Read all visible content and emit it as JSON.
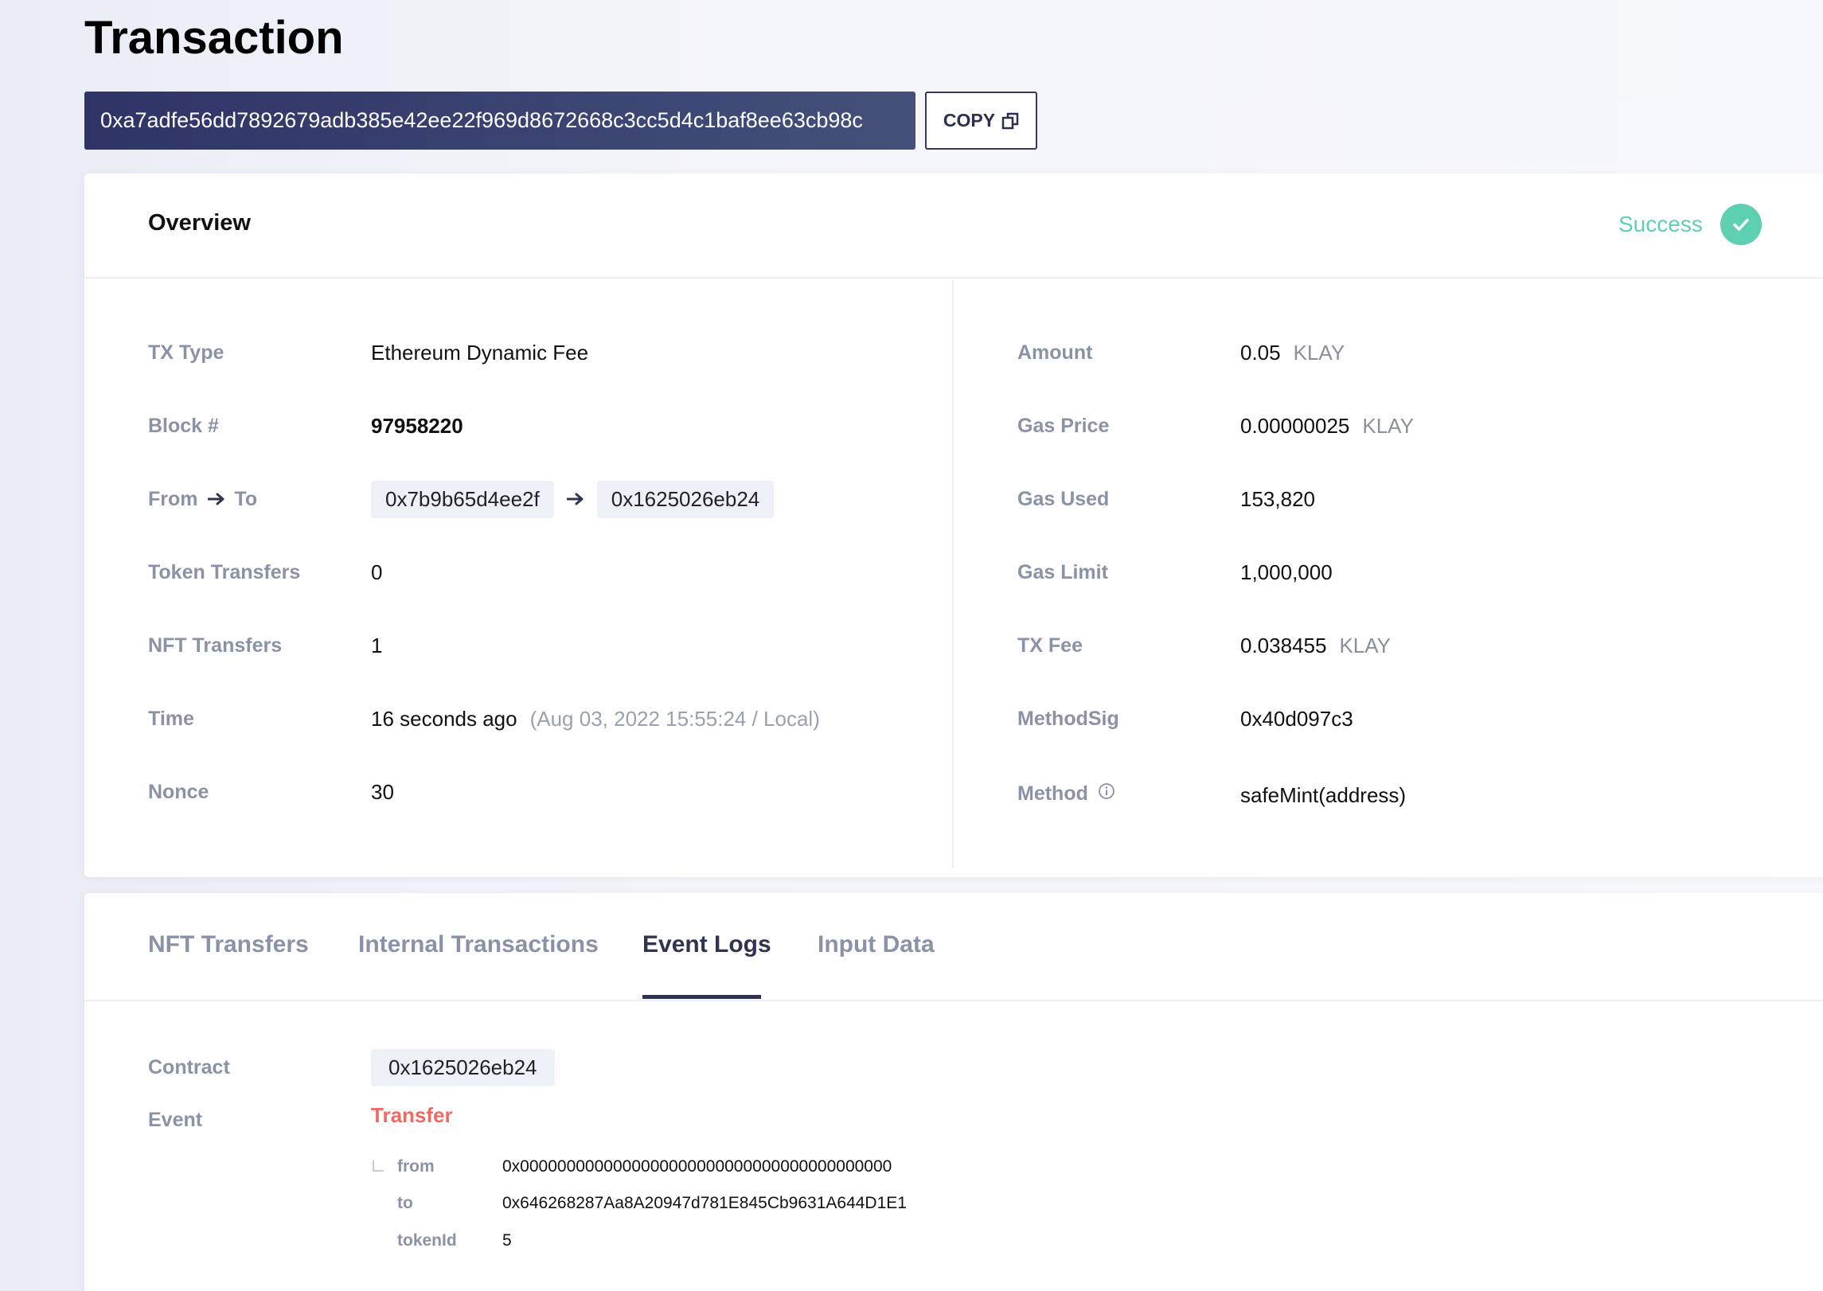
{
  "page": {
    "title": "Transaction",
    "tx_hash": "0xa7adfe56dd7892679adb385e42ee22f969d8672668c3cc5d4c1baf8ee63cb98c",
    "copy_label": "COPY"
  },
  "overview": {
    "title": "Overview",
    "status": "Success",
    "left": {
      "tx_type_label": "TX Type",
      "tx_type": "Ethereum Dynamic Fee",
      "block_label": "Block #",
      "block": "97958220",
      "from_label": "From",
      "to_label": "To",
      "from": "0x7b9b65d4ee2f",
      "to": "0x1625026eb24",
      "token_transfers_label": "Token Transfers",
      "token_transfers": "0",
      "nft_transfers_label": "NFT Transfers",
      "nft_transfers": "1",
      "time_label": "Time",
      "time_relative": "16 seconds ago",
      "time_absolute": "(Aug 03, 2022 15:55:24 / Local)",
      "nonce_label": "Nonce",
      "nonce": "30"
    },
    "right": {
      "amount_label": "Amount",
      "amount": "0.05",
      "amount_unit": "KLAY",
      "gas_price_label": "Gas Price",
      "gas_price": "0.00000025",
      "gas_price_unit": "KLAY",
      "gas_used_label": "Gas Used",
      "gas_used": "153,820",
      "gas_limit_label": "Gas Limit",
      "gas_limit": "1,000,000",
      "tx_fee_label": "TX Fee",
      "tx_fee": "0.038455",
      "tx_fee_unit": "KLAY",
      "method_sig_label": "MethodSig",
      "method_sig": "0x40d097c3",
      "method_label": "Method",
      "method": "safeMint(address)"
    }
  },
  "tabs": {
    "items": [
      "NFT Transfers",
      "Internal Transactions",
      "Event Logs",
      "Input Data"
    ],
    "active": "Event Logs"
  },
  "event_log": {
    "contract_label": "Contract",
    "contract": "0x1625026eb24",
    "event_label": "Event",
    "event_name": "Transfer",
    "params": [
      {
        "key": "from",
        "value": "0x0000000000000000000000000000000000000000"
      },
      {
        "key": "to",
        "value": "0x646268287Aa8A20947d781E845Cb9631A644D1E1"
      },
      {
        "key": "tokenId",
        "value": "5"
      }
    ]
  },
  "colors": {
    "success": "#5fcfb1",
    "event_name": "#f06a63",
    "hash_bar": "#2f3466",
    "label": "#8a92a8"
  }
}
